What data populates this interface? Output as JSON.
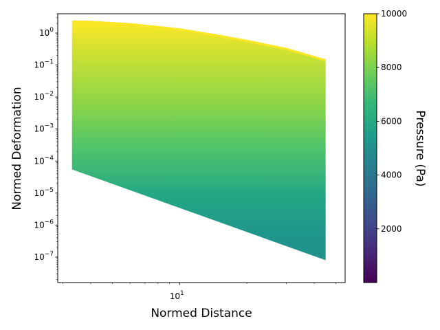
{
  "chart_data": {
    "type": "area",
    "title": "",
    "xlabel": "Normed Distance",
    "ylabel": "Normed Deformation",
    "xscale": "log",
    "yscale": "log",
    "xlim": [
      2.85,
      55
    ],
    "ylim": [
      1.6e-08,
      4.0
    ],
    "x_ticks": [
      {
        "value": 10,
        "base": "10",
        "exp": "1"
      }
    ],
    "y_ticks": [
      {
        "value": 1,
        "base": "10",
        "exp": "0"
      },
      {
        "value": 0.1,
        "base": "10",
        "exp": "−1"
      },
      {
        "value": 0.01,
        "base": "10",
        "exp": "−2"
      },
      {
        "value": 0.001,
        "base": "10",
        "exp": "−3"
      },
      {
        "value": 0.0001,
        "base": "10",
        "exp": "−4"
      },
      {
        "value": 1e-05,
        "base": "10",
        "exp": "−5"
      },
      {
        "value": 1e-06,
        "base": "10",
        "exp": "−6"
      },
      {
        "value": 1e-07,
        "base": "10",
        "exp": "−7"
      }
    ],
    "upper_boundary": {
      "x": [
        3.3,
        4,
        6,
        8,
        10,
        15,
        20,
        30,
        45
      ],
      "y": [
        2.3,
        2.25,
        1.9,
        1.55,
        1.3,
        0.82,
        0.57,
        0.32,
        0.14
      ]
    },
    "lower_boundary": {
      "x": [
        3.3,
        45
      ],
      "y": [
        5.5e-05,
        8e-08
      ]
    },
    "colorbar": {
      "label": "Pressure (Pa)",
      "range": [
        0,
        10000
      ],
      "ticks": [
        {
          "value": 2000,
          "label": "2000"
        },
        {
          "value": 4000,
          "label": "4000"
        },
        {
          "value": 6000,
          "label": "6000"
        },
        {
          "value": 8000,
          "label": "8000"
        },
        {
          "value": 10000,
          "label": "10000"
        }
      ],
      "colormap": [
        "#440154",
        "#482878",
        "#3e4989",
        "#31688e",
        "#26828e",
        "#1f9e89",
        "#35b779",
        "#6ece58",
        "#b5de2b",
        "#fde725"
      ]
    }
  }
}
